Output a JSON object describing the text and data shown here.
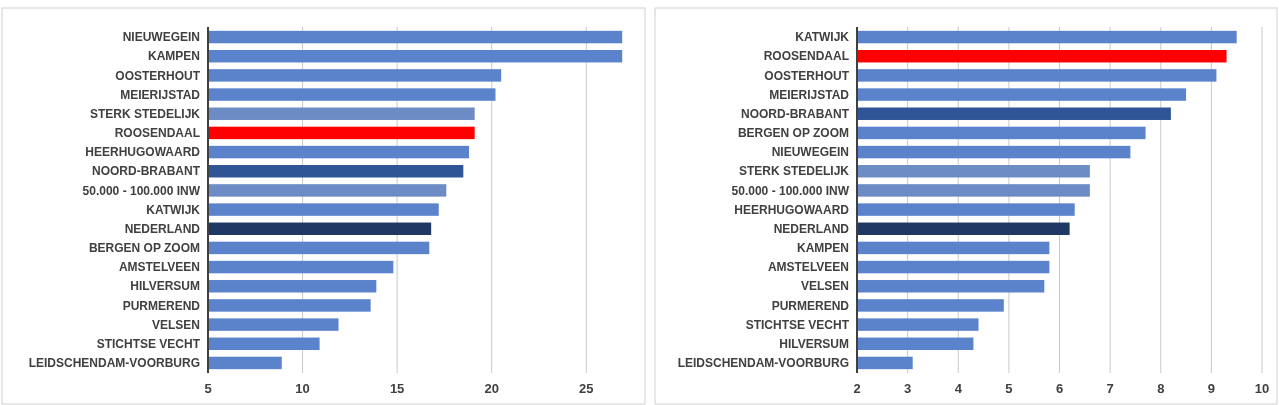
{
  "chart_data": [
    {
      "type": "bar",
      "orientation": "horizontal",
      "categories": [
        "NIEUWEGEIN",
        "KAMPEN",
        "OOSTERHOUT",
        "MEIERIJSTAD",
        "STERK STEDELIJK",
        "ROOSENDAAL",
        "HEERHUGOWAARD",
        "NOORD-BRABANT",
        "50.000 - 100.000 INW",
        "KATWIJK",
        "NEDERLAND",
        "BERGEN OP ZOOM",
        "AMSTELVEEN",
        "HILVERSUM",
        "PURMEREND",
        "VELSEN",
        "STICHTSE VECHT",
        "LEIDSCHENDAM-VOORBURG"
      ],
      "values": [
        26.9,
        26.9,
        20.5,
        20.2,
        19.1,
        19.1,
        18.8,
        18.5,
        17.6,
        17.2,
        16.8,
        16.7,
        14.8,
        13.9,
        13.6,
        11.9,
        10.9,
        8.9
      ],
      "colors": [
        "#5b83cb",
        "#5b83cb",
        "#5b83cb",
        "#5b83cb",
        "#6d8cc6",
        "#ff0000",
        "#5b83cb",
        "#2f5597",
        "#6d8cc6",
        "#5b83cb",
        "#1f3864",
        "#5b83cb",
        "#5b83cb",
        "#5b83cb",
        "#5b83cb",
        "#5b83cb",
        "#5b83cb",
        "#5b83cb"
      ],
      "xlim": [
        5,
        28
      ],
      "xticks": [
        5,
        10,
        15,
        20,
        25
      ],
      "grid": "x"
    },
    {
      "type": "bar",
      "orientation": "horizontal",
      "categories": [
        "KATWIJK",
        "ROOSENDAAL",
        "OOSTERHOUT",
        "MEIERIJSTAD",
        "NOORD-BRABANT",
        "BERGEN OP ZOOM",
        "NIEUWEGEIN",
        "STERK STEDELIJK",
        "50.000 - 100.000 INW",
        "HEERHUGOWAARD",
        "NEDERLAND",
        "KAMPEN",
        "AMSTELVEEN",
        "VELSEN",
        "PURMEREND",
        "STICHTSE VECHT",
        "HILVERSUM",
        "LEIDSCHENDAM-VOORBURG"
      ],
      "values": [
        9.5,
        9.3,
        9.1,
        8.5,
        8.2,
        7.7,
        7.4,
        6.6,
        6.6,
        6.3,
        6.2,
        5.8,
        5.8,
        5.7,
        4.9,
        4.4,
        4.3,
        3.1
      ],
      "colors": [
        "#5b83cb",
        "#ff0000",
        "#5b83cb",
        "#5b83cb",
        "#2f5597",
        "#5b83cb",
        "#5b83cb",
        "#6d8cc6",
        "#6d8cc6",
        "#5b83cb",
        "#1f3864",
        "#5b83cb",
        "#5b83cb",
        "#5b83cb",
        "#5b83cb",
        "#5b83cb",
        "#5b83cb",
        "#5b83cb"
      ],
      "xlim": [
        2,
        10
      ],
      "xticks": [
        2,
        3,
        4,
        5,
        6,
        7,
        8,
        9,
        10
      ],
      "grid": "x"
    }
  ]
}
